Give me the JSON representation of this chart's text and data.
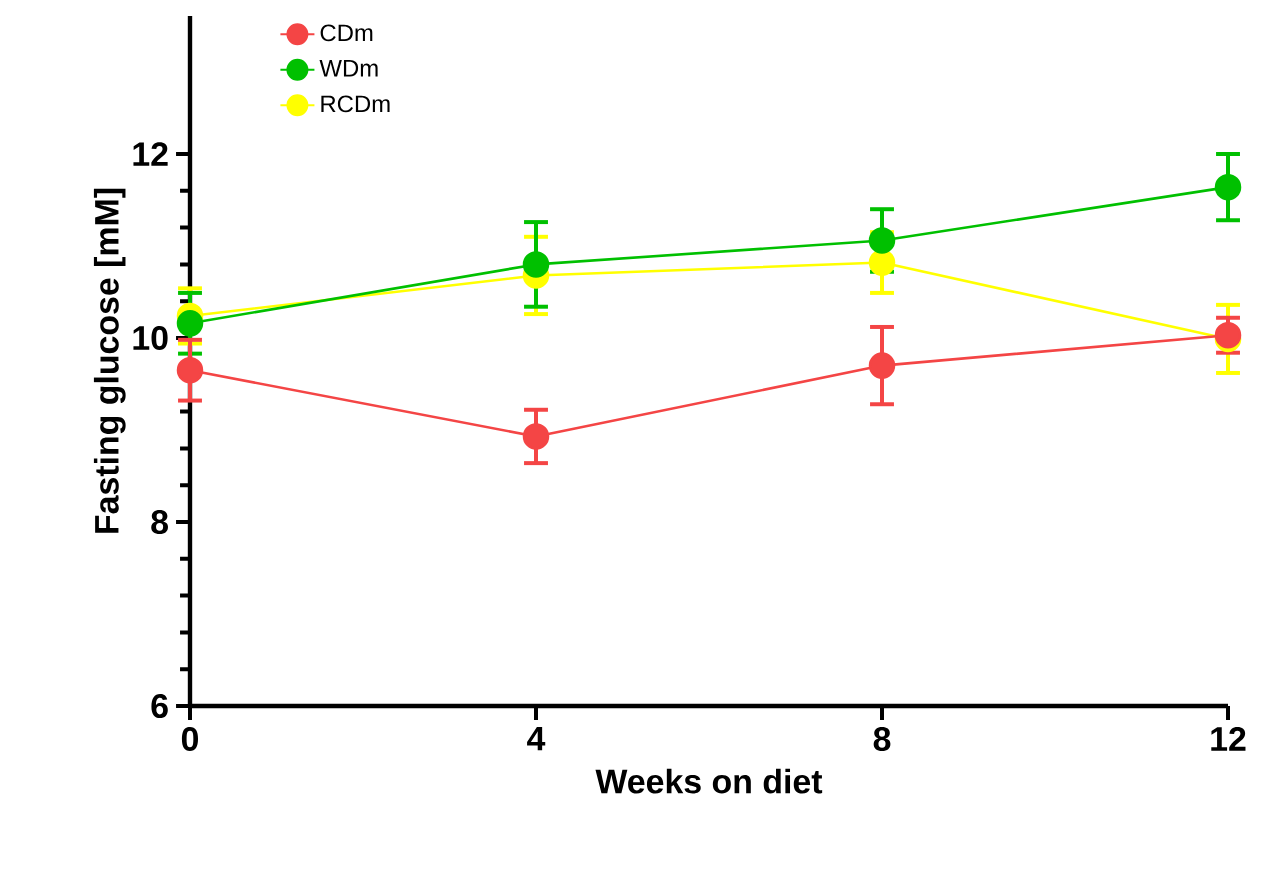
{
  "chart_data": {
    "type": "line",
    "xlabel": "Weeks on diet",
    "ylabel": "Fasting glucose [mM]",
    "x": [
      0,
      4,
      8,
      12
    ],
    "xlim": [
      0,
      12
    ],
    "xticks": [
      0,
      4,
      8,
      12
    ],
    "ylim": [
      6,
      13.5
    ],
    "yticks": [
      6,
      8,
      10,
      12
    ],
    "legend": "top left",
    "marker": "circle",
    "line_style": "solid",
    "grid": false,
    "series": [
      {
        "name": "CDm",
        "color": "#f44545",
        "values": [
          9.65,
          8.93,
          9.7,
          10.03
        ],
        "errors": [
          0.33,
          0.29,
          0.42,
          0.19
        ]
      },
      {
        "name": "WDm",
        "color": "#00c000",
        "values": [
          10.16,
          10.8,
          11.06,
          11.64
        ],
        "errors": [
          0.33,
          0.46,
          0.34,
          0.36
        ]
      },
      {
        "name": "RCDm",
        "color": "#ffff00",
        "values": [
          10.24,
          10.68,
          10.82,
          9.99
        ],
        "errors": [
          0.3,
          0.42,
          0.33,
          0.37
        ]
      }
    ]
  }
}
